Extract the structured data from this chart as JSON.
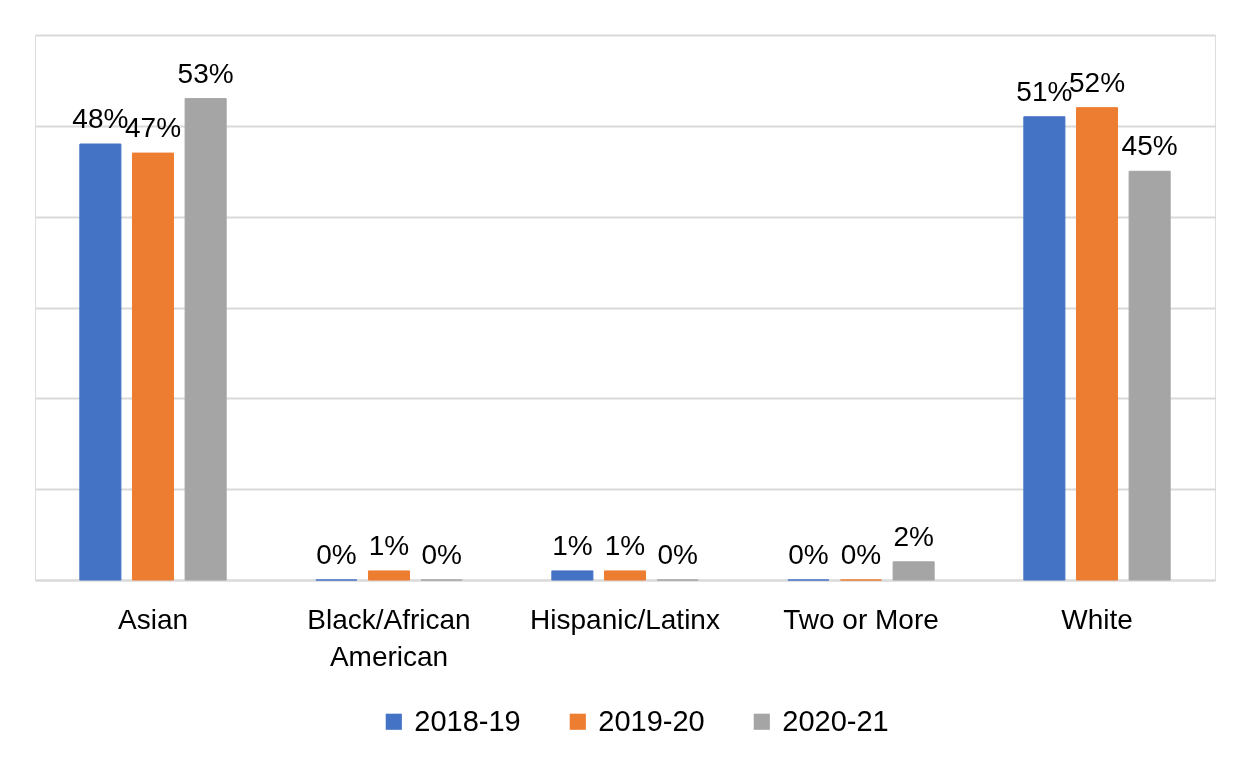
{
  "chart_data": {
    "type": "bar",
    "categories": [
      "Asian",
      "Black/African American",
      "Hispanic/Latinx",
      "Two or More",
      "White"
    ],
    "series": [
      {
        "name": "2018-19",
        "color": "#4472c4",
        "values": [
          48,
          0,
          1,
          0,
          51
        ],
        "value_labels": [
          "48%",
          "0%",
          "1%",
          "0%",
          "51%"
        ]
      },
      {
        "name": "2019-20",
        "color": "#ed7d31",
        "values": [
          47,
          1,
          1,
          0,
          52
        ],
        "value_labels": [
          "47%",
          "1%",
          "1%",
          "0%",
          "52%"
        ]
      },
      {
        "name": "2020-21",
        "color": "#a5a5a5",
        "values": [
          53,
          0,
          0,
          2,
          45
        ],
        "value_labels": [
          "53%",
          "0%",
          "0%",
          "2%",
          "45%"
        ]
      }
    ],
    "ylim": [
      0,
      60
    ],
    "yticks": [
      {
        "value": 0,
        "label": null
      },
      {
        "value": 10,
        "label": null
      },
      {
        "value": 20,
        "label": null
      },
      {
        "value": 30,
        "label": null
      },
      {
        "value": 40,
        "label": null
      },
      {
        "value": 50,
        "label": null
      },
      {
        "value": 60,
        "label": null
      }
    ],
    "tick_labels": "x",
    "grid": "y",
    "legend": "bottom"
  }
}
